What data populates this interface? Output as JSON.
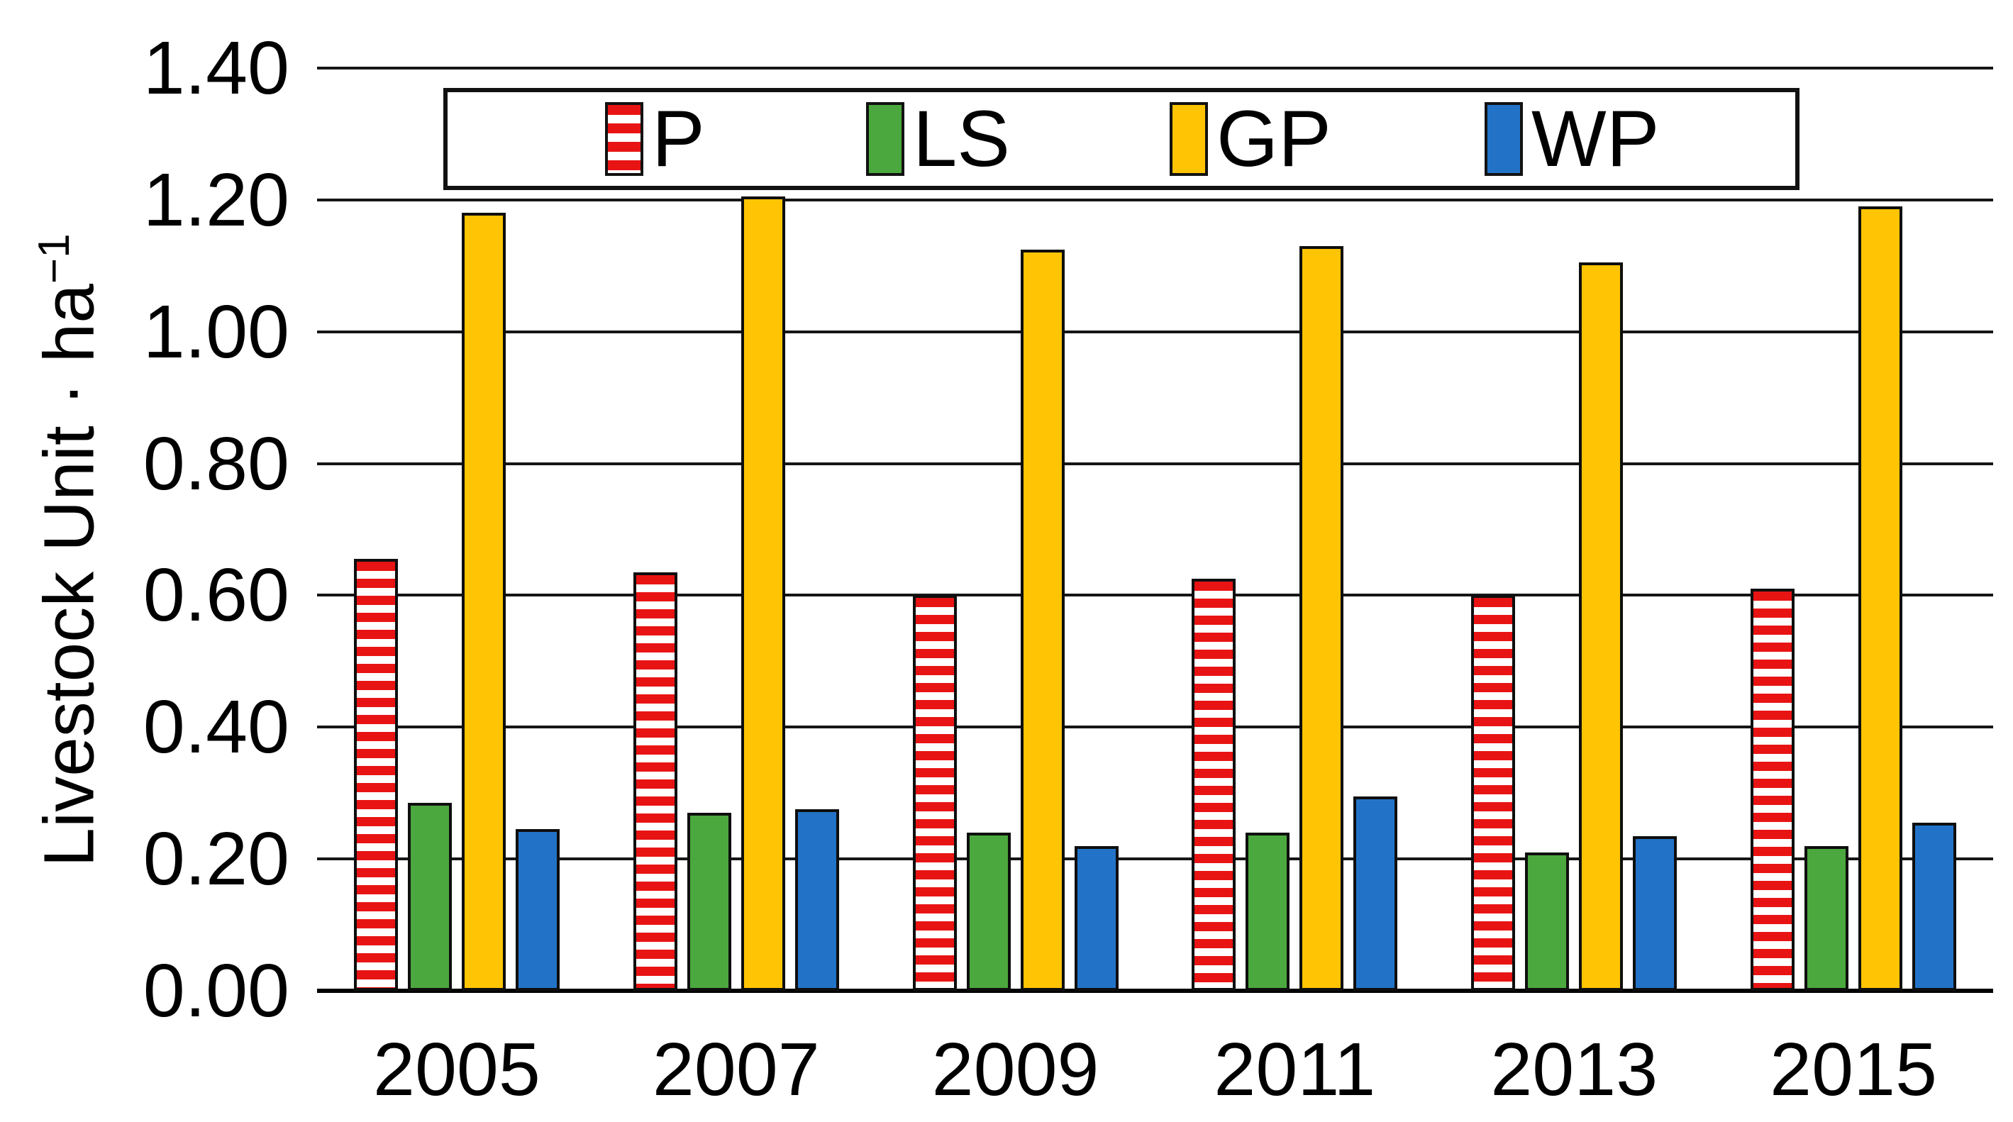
{
  "chart_data": {
    "type": "bar",
    "title": "",
    "ylabel_main": "Livestock Unit · ha",
    "ylabel_sup": "−1",
    "categories": [
      "2005",
      "2007",
      "2009",
      "2011",
      "2013",
      "2015"
    ],
    "series": [
      {
        "name": "P",
        "style": "striped",
        "color": "#E81414",
        "values": [
          0.655,
          0.635,
          0.6,
          0.625,
          0.6,
          0.61
        ]
      },
      {
        "name": "LS",
        "style": "solid",
        "color": "#4BA83E",
        "values": [
          0.285,
          0.27,
          0.24,
          0.24,
          0.21,
          0.22
        ]
      },
      {
        "name": "GP",
        "style": "solid",
        "color": "#FFC403",
        "values": [
          1.18,
          1.205,
          1.125,
          1.13,
          1.105,
          1.19
        ]
      },
      {
        "name": "WP",
        "style": "solid",
        "color": "#2273C8",
        "values": [
          0.245,
          0.275,
          0.22,
          0.295,
          0.235,
          0.255
        ]
      }
    ],
    "y_axis": {
      "min": 0.0,
      "max": 1.4,
      "step": 0.2,
      "tick_labels": [
        "0.00",
        "0.20",
        "0.40",
        "0.60",
        "0.80",
        "1.00",
        "1.20",
        "1.40"
      ]
    },
    "legend": {
      "position": "top",
      "labels": [
        "P",
        "LS",
        "GP",
        "WP"
      ]
    },
    "grid": "horizontal",
    "colors": {
      "stripe_background": "#FFFFFF",
      "grid_color": "#161616",
      "text_color": "#000000"
    }
  }
}
